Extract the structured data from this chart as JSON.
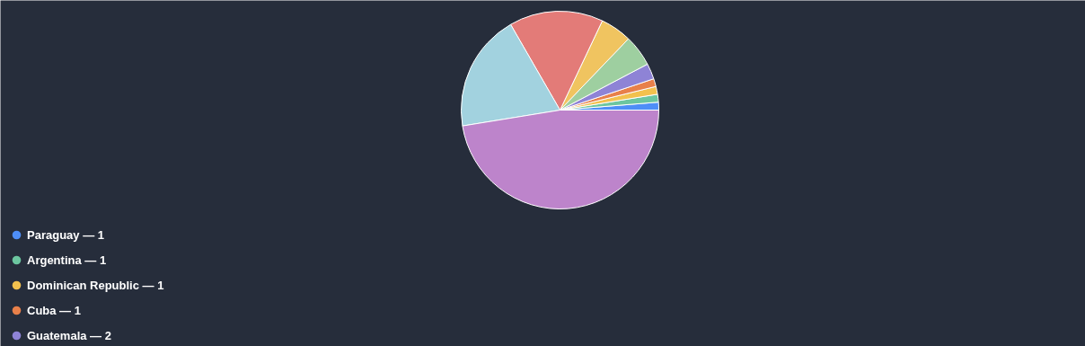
{
  "chart_data": {
    "type": "pie",
    "categories": [
      "Paraguay — 1",
      "Argentina — 1",
      "Dominican Republic — 1",
      "Cuba — 1",
      "Guatemala — 2",
      null,
      null,
      null,
      null,
      null
    ],
    "values": [
      1,
      1,
      1,
      1,
      2,
      4,
      4,
      12,
      15,
      37
    ],
    "colors": [
      "#4e8ef7",
      "#6cc6a0",
      "#f2c14e",
      "#e8804a",
      "#8e83d6",
      "#9ecfa0",
      "#f0c460",
      "#e37b78",
      "#a2d2df",
      "#bd84cb"
    ],
    "legend": "bottom left"
  }
}
